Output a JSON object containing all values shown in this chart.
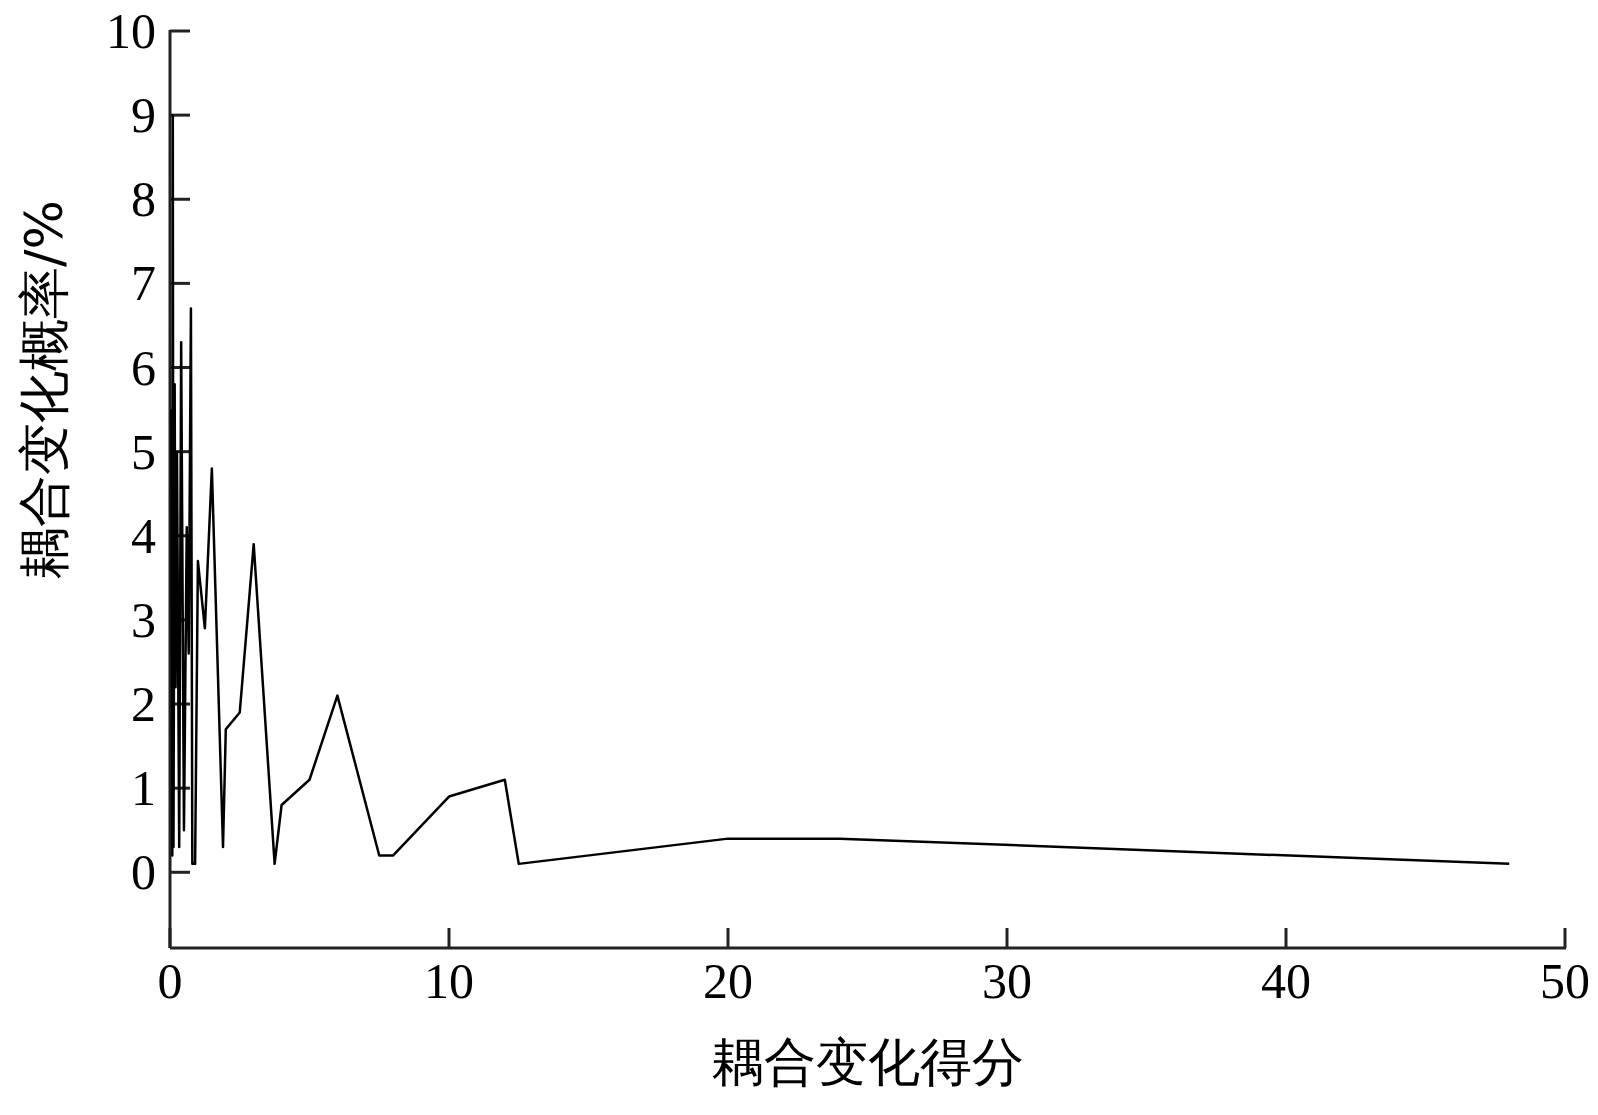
{
  "chart_data": {
    "type": "line",
    "xlabel": "耦合变化得分",
    "ylabel": "耦合变化概率/%",
    "xlim": [
      0,
      50
    ],
    "ylim": [
      -0.9,
      10
    ],
    "xticks": [
      0,
      10,
      20,
      30,
      40,
      50
    ],
    "yticks": [
      0,
      1,
      2,
      3,
      4,
      5,
      6,
      7,
      8,
      9,
      10
    ],
    "grid": false,
    "marker": "none",
    "line_style": "solid",
    "series": [
      {
        "color": "#000000",
        "x": [
          0.05,
          0.083,
          0.1,
          0.125,
          0.167,
          0.2,
          0.25,
          0.33,
          0.4,
          0.5,
          0.6,
          0.67,
          0.75,
          0.8,
          0.9,
          1.0,
          1.25,
          1.5,
          1.9,
          2.0,
          2.5,
          3,
          3.75,
          4,
          5,
          6,
          7.5,
          8,
          10,
          12,
          12.5,
          20,
          24,
          48
        ],
        "values": [
          5.5,
          0.2,
          9.0,
          0.3,
          5.8,
          2.2,
          5.0,
          0.3,
          6.3,
          0.5,
          4.1,
          2.6,
          6.7,
          0.1,
          0.1,
          3.7,
          2.9,
          4.8,
          0.3,
          1.7,
          1.9,
          3.9,
          0.1,
          0.8,
          1.1,
          2.1,
          0.2,
          0.2,
          0.9,
          1.1,
          0.1,
          0.4,
          0.4,
          0.1
        ]
      }
    ]
  }
}
